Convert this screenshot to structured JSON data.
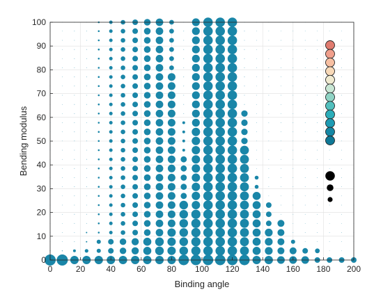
{
  "chart_data": {
    "type": "scatter",
    "xlabel": "Binding angle",
    "ylabel": "Bending modulus",
    "xlim": [
      0,
      200
    ],
    "ylim": [
      0,
      100
    ],
    "xticks": [
      "0",
      "20",
      "40",
      "60",
      "80",
      "100",
      "120",
      "140",
      "160",
      "180",
      "200"
    ],
    "yticks": [
      "0",
      "10",
      "20",
      "30",
      "40",
      "50",
      "60",
      "70",
      "80",
      "90",
      "100"
    ],
    "grid": true,
    "marker": "filled circle, size encodes magnitude",
    "x_grid_step": 8,
    "y_grid_step": 3.85,
    "color_scale": [
      "#0e7896",
      "#1587a4",
      "#1d9bb3",
      "#2cadb9",
      "#52bfbd",
      "#8fd3c4",
      "#c8e6d4",
      "#f0ead0",
      "#f8d9b8",
      "#f7bfa2",
      "#f09f8c",
      "#e07b6f"
    ],
    "size_legend": [
      "large",
      "medium",
      "small"
    ],
    "series": [
      {
        "name": "",
        "color": "#1a86a8",
        "columns": [
          {
            "x": 0,
            "ymax": 0,
            "peak": 0
          },
          {
            "x": 8,
            "ymax": 0,
            "peak": 0
          },
          {
            "x": 16,
            "ymax": 5,
            "peak": 0
          },
          {
            "x": 24,
            "ymax": 10,
            "peak": 0
          },
          {
            "x": 32,
            "ymax": 100,
            "peak": 0
          },
          {
            "x": 40,
            "ymax": 100,
            "peak": 0
          },
          {
            "x": 48,
            "ymax": 100,
            "peak": 0
          },
          {
            "x": 56,
            "ymax": 100,
            "peak": 0
          },
          {
            "x": 64,
            "ymax": 100,
            "peak": 0
          },
          {
            "x": 72,
            "ymax": 100,
            "peak": 0
          },
          {
            "x": 80,
            "ymax": 100,
            "peak": 0
          },
          {
            "x": 88,
            "ymax": 100,
            "peak": 0
          },
          {
            "x": 96,
            "ymax": 100,
            "peak": 0
          },
          {
            "x": 104,
            "ymax": 100,
            "peak": 0
          },
          {
            "x": 112,
            "ymax": 100,
            "peak": 0
          },
          {
            "x": 120,
            "ymax": 100,
            "peak": 0
          },
          {
            "x": 128,
            "ymax": 60,
            "peak": 0
          },
          {
            "x": 136,
            "ymax": 35,
            "peak": 0
          },
          {
            "x": 144,
            "ymax": 23,
            "peak": 0
          },
          {
            "x": 152,
            "ymax": 15,
            "peak": 0
          },
          {
            "x": 160,
            "ymax": 10,
            "peak": 0
          },
          {
            "x": 168,
            "ymax": 6,
            "peak": 0
          },
          {
            "x": 176,
            "ymax": 4,
            "peak": 0
          }
        ],
        "notable_points": [
          {
            "x": 0,
            "y": 0
          },
          {
            "x": 8,
            "y": 0
          },
          {
            "x": 104,
            "y": 100
          },
          {
            "x": 112,
            "y": 100
          },
          {
            "x": 120,
            "y": 100
          },
          {
            "x": 72,
            "y": 100
          }
        ]
      }
    ]
  }
}
